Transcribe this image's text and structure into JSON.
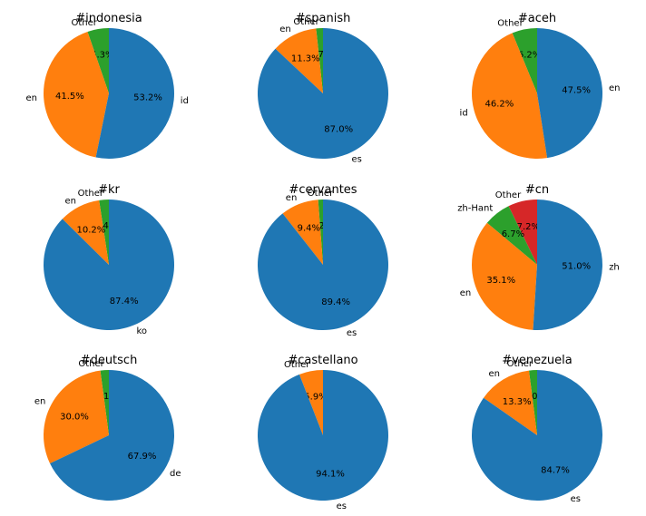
{
  "colors": {
    "C0": "#1f77b4",
    "C1": "#ff7f0e",
    "C2": "#2ca02c",
    "C3": "#d62728"
  },
  "chart_data": [
    {
      "type": "pie",
      "title": "#indonesia",
      "slices": [
        {
          "label": "Other",
          "value": 5.3,
          "pct": "5.3%",
          "color": "C2"
        },
        {
          "label": "en",
          "value": 41.5,
          "pct": "41.5%",
          "color": "C1"
        },
        {
          "label": "id",
          "value": 53.2,
          "pct": "53.2%",
          "color": "C0"
        }
      ]
    },
    {
      "type": "pie",
      "title": "#spanish",
      "slices": [
        {
          "label": "Other",
          "value": 1.7,
          "pct": "1.7%",
          "color": "C2"
        },
        {
          "label": "en",
          "value": 11.3,
          "pct": "11.3%",
          "color": "C1"
        },
        {
          "label": "es",
          "value": 87.0,
          "pct": "87.0%",
          "color": "C0"
        }
      ]
    },
    {
      "type": "pie",
      "title": "#aceh",
      "slices": [
        {
          "label": "Other",
          "value": 6.2,
          "pct": "6.2%",
          "color": "C2"
        },
        {
          "label": "id",
          "value": 46.2,
          "pct": "46.2%",
          "color": "C1"
        },
        {
          "label": "en",
          "value": 47.5,
          "pct": "47.5%",
          "color": "C0"
        }
      ]
    },
    {
      "type": "pie",
      "title": "#kr",
      "slices": [
        {
          "label": "Other",
          "value": 2.4,
          "pct": "2.4%",
          "color": "C2"
        },
        {
          "label": "en",
          "value": 10.2,
          "pct": "10.2%",
          "color": "C1"
        },
        {
          "label": "ko",
          "value": 87.4,
          "pct": "87.4%",
          "color": "C0"
        }
      ]
    },
    {
      "type": "pie",
      "title": "#cervantes",
      "slices": [
        {
          "label": "Other",
          "value": 1.2,
          "pct": "1.2%",
          "color": "C2"
        },
        {
          "label": "en",
          "value": 9.4,
          "pct": "9.4%",
          "color": "C1"
        },
        {
          "label": "es",
          "value": 89.4,
          "pct": "89.4%",
          "color": "C0"
        }
      ]
    },
    {
      "type": "pie",
      "title": "#cn",
      "slices": [
        {
          "label": "Other",
          "value": 7.2,
          "pct": "7.2%",
          "color": "C3"
        },
        {
          "label": "zh-Hant",
          "value": 6.7,
          "pct": "6.7%",
          "color": "C2"
        },
        {
          "label": "en",
          "value": 35.1,
          "pct": "35.1%",
          "color": "C1"
        },
        {
          "label": "zh",
          "value": 51.0,
          "pct": "51.0%",
          "color": "C0"
        }
      ]
    },
    {
      "type": "pie",
      "title": "#deutsch",
      "slices": [
        {
          "label": "Other",
          "value": 2.1,
          "pct": "2.1%",
          "color": "C2"
        },
        {
          "label": "en",
          "value": 30.0,
          "pct": "30.0%",
          "color": "C1"
        },
        {
          "label": "de",
          "value": 67.9,
          "pct": "67.9%",
          "color": "C0"
        }
      ]
    },
    {
      "type": "pie",
      "title": "#castellano",
      "slices": [
        {
          "label": "Other",
          "value": 5.9,
          "pct": "5.9%",
          "color": "C1"
        },
        {
          "label": "es",
          "value": 94.1,
          "pct": "94.1%",
          "color": "C0"
        }
      ]
    },
    {
      "type": "pie",
      "title": "#venezuela",
      "slices": [
        {
          "label": "Other",
          "value": 2.0,
          "pct": "2.0%",
          "color": "C2"
        },
        {
          "label": "en",
          "value": 13.3,
          "pct": "13.3%",
          "color": "C1"
        },
        {
          "label": "es",
          "value": 84.7,
          "pct": "84.7%",
          "color": "C0"
        }
      ]
    }
  ]
}
